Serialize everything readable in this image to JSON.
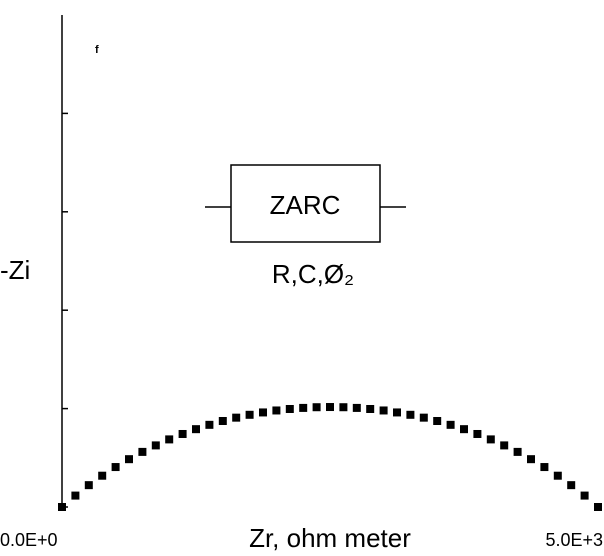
{
  "chart_data": {
    "type": "scatter",
    "panel_label": "f",
    "x_label": "Zr, ohm meter",
    "y_label": "-Zi",
    "annotation": {
      "box": "ZARC",
      "params": "R,C,Ø₂"
    },
    "xlim": [
      0,
      5000
    ],
    "xticks": [
      {
        "value": 0,
        "label": "0.0E+0"
      },
      {
        "value": 5000,
        "label": "5.0E+3"
      }
    ],
    "ylim": [
      0,
      5000
    ],
    "yticks": [
      0,
      1000,
      2000,
      3000,
      4000
    ],
    "color": "#000000",
    "x": [
      0,
      125,
      250,
      375,
      500,
      625,
      750,
      875,
      1000,
      1125,
      1250,
      1375,
      1500,
      1625,
      1750,
      1875,
      2000,
      2125,
      2250,
      2375,
      2500,
      2625,
      2750,
      2875,
      3000,
      3125,
      3250,
      3375,
      3500,
      3625,
      3750,
      3875,
      4000,
      4125,
      4250,
      4375,
      4500,
      4625,
      4750,
      4875,
      5000
    ],
    "values": [
      0,
      116,
      222,
      318,
      406,
      486,
      560,
      626,
      687,
      742,
      791,
      835,
      874,
      908,
      937,
      961,
      981,
      996,
      1007,
      1014,
      1016,
      1014,
      1007,
      996,
      981,
      961,
      937,
      908,
      874,
      835,
      791,
      742,
      687,
      626,
      560,
      486,
      406,
      318,
      222,
      116,
      0
    ]
  }
}
